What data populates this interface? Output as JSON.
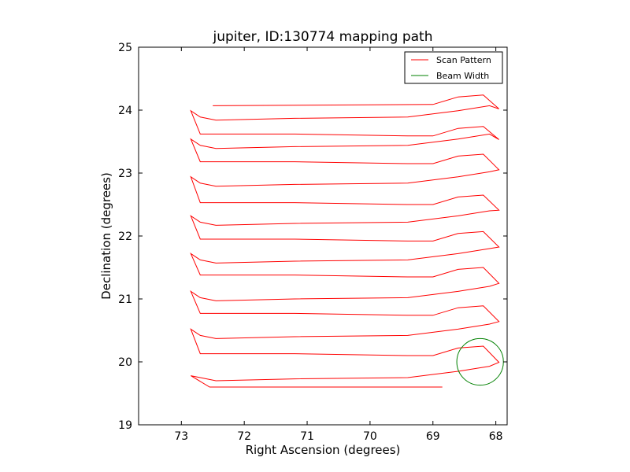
{
  "chart_data": {
    "type": "line",
    "title": "jupiter, ID:130774 mapping path",
    "xlabel": "Right Ascension (degrees)",
    "ylabel": "Declination (degrees)",
    "xlim": [
      73.68,
      67.82
    ],
    "ylim": [
      19,
      25
    ],
    "x_inverted": true,
    "xticks": [
      "73",
      "72",
      "71",
      "70",
      "69",
      "68"
    ],
    "yticks": [
      "19",
      "20",
      "21",
      "22",
      "23",
      "24",
      "25"
    ],
    "grid": false,
    "legend_position": "top-right",
    "legend": [
      {
        "label": "Scan Pattern",
        "color": "#ff0000"
      },
      {
        "label": "Beam Width",
        "color": "#008000"
      }
    ],
    "scan": {
      "name": "Scan Pattern",
      "color": "#ff0000",
      "start": [
        72.5,
        24.07
      ],
      "end": [
        68.85,
        19.6
      ],
      "x_turn_left_max": 72.95,
      "x_turn_right_min": 67.82,
      "rows": [
        24.07,
        23.87,
        23.57,
        23.42,
        23.13,
        22.82,
        22.48,
        22.2,
        21.9,
        21.6,
        21.33,
        21.0,
        20.72,
        20.4,
        20.08,
        19.73
      ]
    },
    "beam": {
      "name": "Beam Width",
      "color": "#008000",
      "center": [
        68.25,
        20.0
      ],
      "radius_deg": 0.37
    }
  }
}
